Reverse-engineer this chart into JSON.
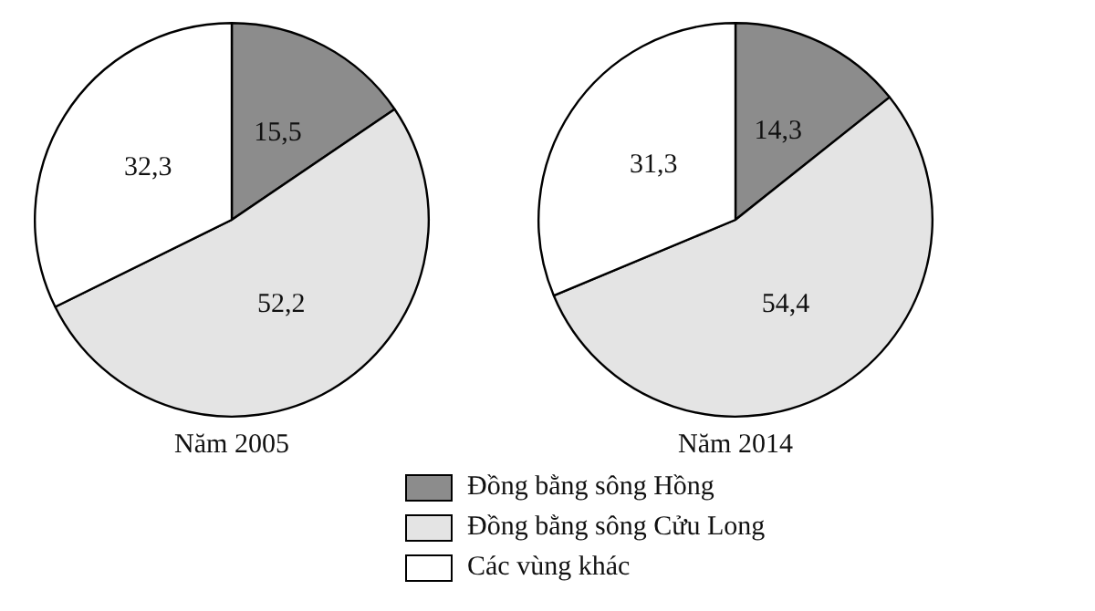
{
  "chart_data": [
    {
      "type": "pie",
      "title": "Năm 2005",
      "categories": [
        "Đồng bằng sông Hồng",
        "Đồng bằng sông Cửu Long",
        "Các vùng khác"
      ],
      "values": [
        15.5,
        52.2,
        32.3
      ],
      "value_labels": [
        "15,5",
        "52,2",
        "32,3"
      ],
      "colors": [
        "#8c8c8c",
        "#e4e4e4",
        "#ffffff"
      ],
      "legend": "bottom"
    },
    {
      "type": "pie",
      "title": "Năm 2014",
      "categories": [
        null,
        null,
        null
      ],
      "values": [
        14.3,
        54.4,
        31.3
      ],
      "value_labels": [
        "14,3",
        "54,4",
        "31,3"
      ],
      "colors": [
        "#8c8c8c",
        "#e4e4e4",
        "#ffffff"
      ]
    }
  ]
}
